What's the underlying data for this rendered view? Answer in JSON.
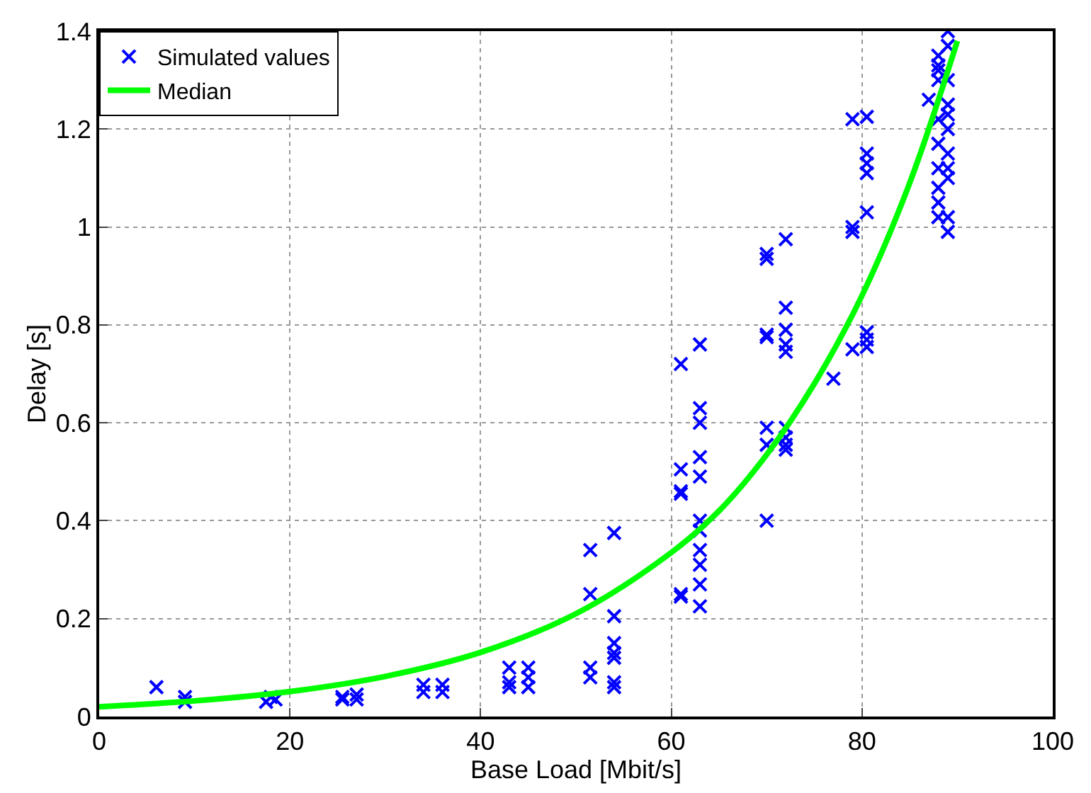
{
  "chart_data": {
    "type": "scatter",
    "xlabel": "Base Load [Mbit/s]",
    "ylabel": "Delay [s]",
    "xlim": [
      0,
      100
    ],
    "ylim": [
      0,
      1.4
    ],
    "xticks": [
      0,
      20,
      40,
      60,
      80,
      100
    ],
    "yticks": [
      0,
      0.2,
      0.4,
      0.6,
      0.8,
      1,
      1.2,
      1.4
    ],
    "grid": true,
    "legend": "top left",
    "series": [
      {
        "name": "Simulated values",
        "color": "#0000ff",
        "marker": "cross",
        "x": [
          6,
          9,
          9,
          17.5,
          18,
          18.5,
          25.5,
          25.5,
          27,
          27,
          34,
          34,
          36,
          36,
          43,
          43,
          43,
          45,
          45,
          45,
          51.5,
          51.5,
          51.5,
          51.5,
          54,
          54,
          54,
          54,
          54,
          54,
          54,
          61,
          61,
          61,
          61,
          61,
          61,
          63,
          63,
          63,
          63,
          63,
          63,
          63,
          63,
          63,
          63,
          63,
          70,
          70,
          70,
          70,
          70,
          70,
          70,
          72,
          72,
          72,
          72,
          72,
          72,
          72,
          72,
          72,
          77,
          79,
          79,
          79,
          79,
          80.5,
          80.5,
          80.5,
          80.5,
          80.5,
          80.5,
          80.5,
          80.5,
          87,
          88,
          88,
          88,
          88,
          88,
          88,
          88,
          88,
          88,
          88,
          89,
          89,
          89,
          89,
          89,
          89,
          89,
          89,
          89,
          89,
          89
        ],
        "values": [
          0.06,
          0.03,
          0.04,
          0.03,
          0.04,
          0.035,
          0.04,
          0.035,
          0.045,
          0.035,
          0.05,
          0.065,
          0.05,
          0.065,
          0.06,
          0.07,
          0.1,
          0.06,
          0.08,
          0.1,
          0.34,
          0.25,
          0.1,
          0.08,
          0.375,
          0.205,
          0.15,
          0.13,
          0.12,
          0.07,
          0.06,
          0.72,
          0.505,
          0.46,
          0.455,
          0.25,
          0.245,
          0.76,
          0.63,
          0.6,
          0.53,
          0.49,
          0.4,
          0.38,
          0.34,
          0.31,
          0.27,
          0.225,
          0.945,
          0.935,
          0.78,
          0.775,
          0.59,
          0.555,
          0.4,
          0.975,
          0.835,
          0.79,
          0.76,
          0.745,
          0.59,
          0.57,
          0.555,
          0.545,
          0.69,
          1.22,
          1.0,
          0.99,
          0.75,
          1.225,
          1.15,
          1.13,
          1.11,
          1.03,
          0.785,
          0.77,
          0.755,
          1.26,
          1.35,
          1.33,
          1.32,
          1.3,
          1.22,
          1.17,
          1.12,
          1.08,
          1.05,
          1.02,
          1.4,
          1.37,
          1.3,
          1.25,
          1.23,
          1.2,
          1.15,
          1.12,
          1.1,
          1.02,
          0.99
        ]
      },
      {
        "name": "Median",
        "color": "#00ff00",
        "type": "line",
        "marker": "none",
        "x": [
          0,
          10,
          20,
          30,
          40,
          50,
          60,
          65,
          70,
          75,
          80,
          85,
          90
        ],
        "values": [
          0.02,
          0.032,
          0.051,
          0.082,
          0.131,
          0.21,
          0.335,
          0.42,
          0.535,
          0.68,
          0.86,
          1.09,
          1.38
        ]
      }
    ]
  }
}
